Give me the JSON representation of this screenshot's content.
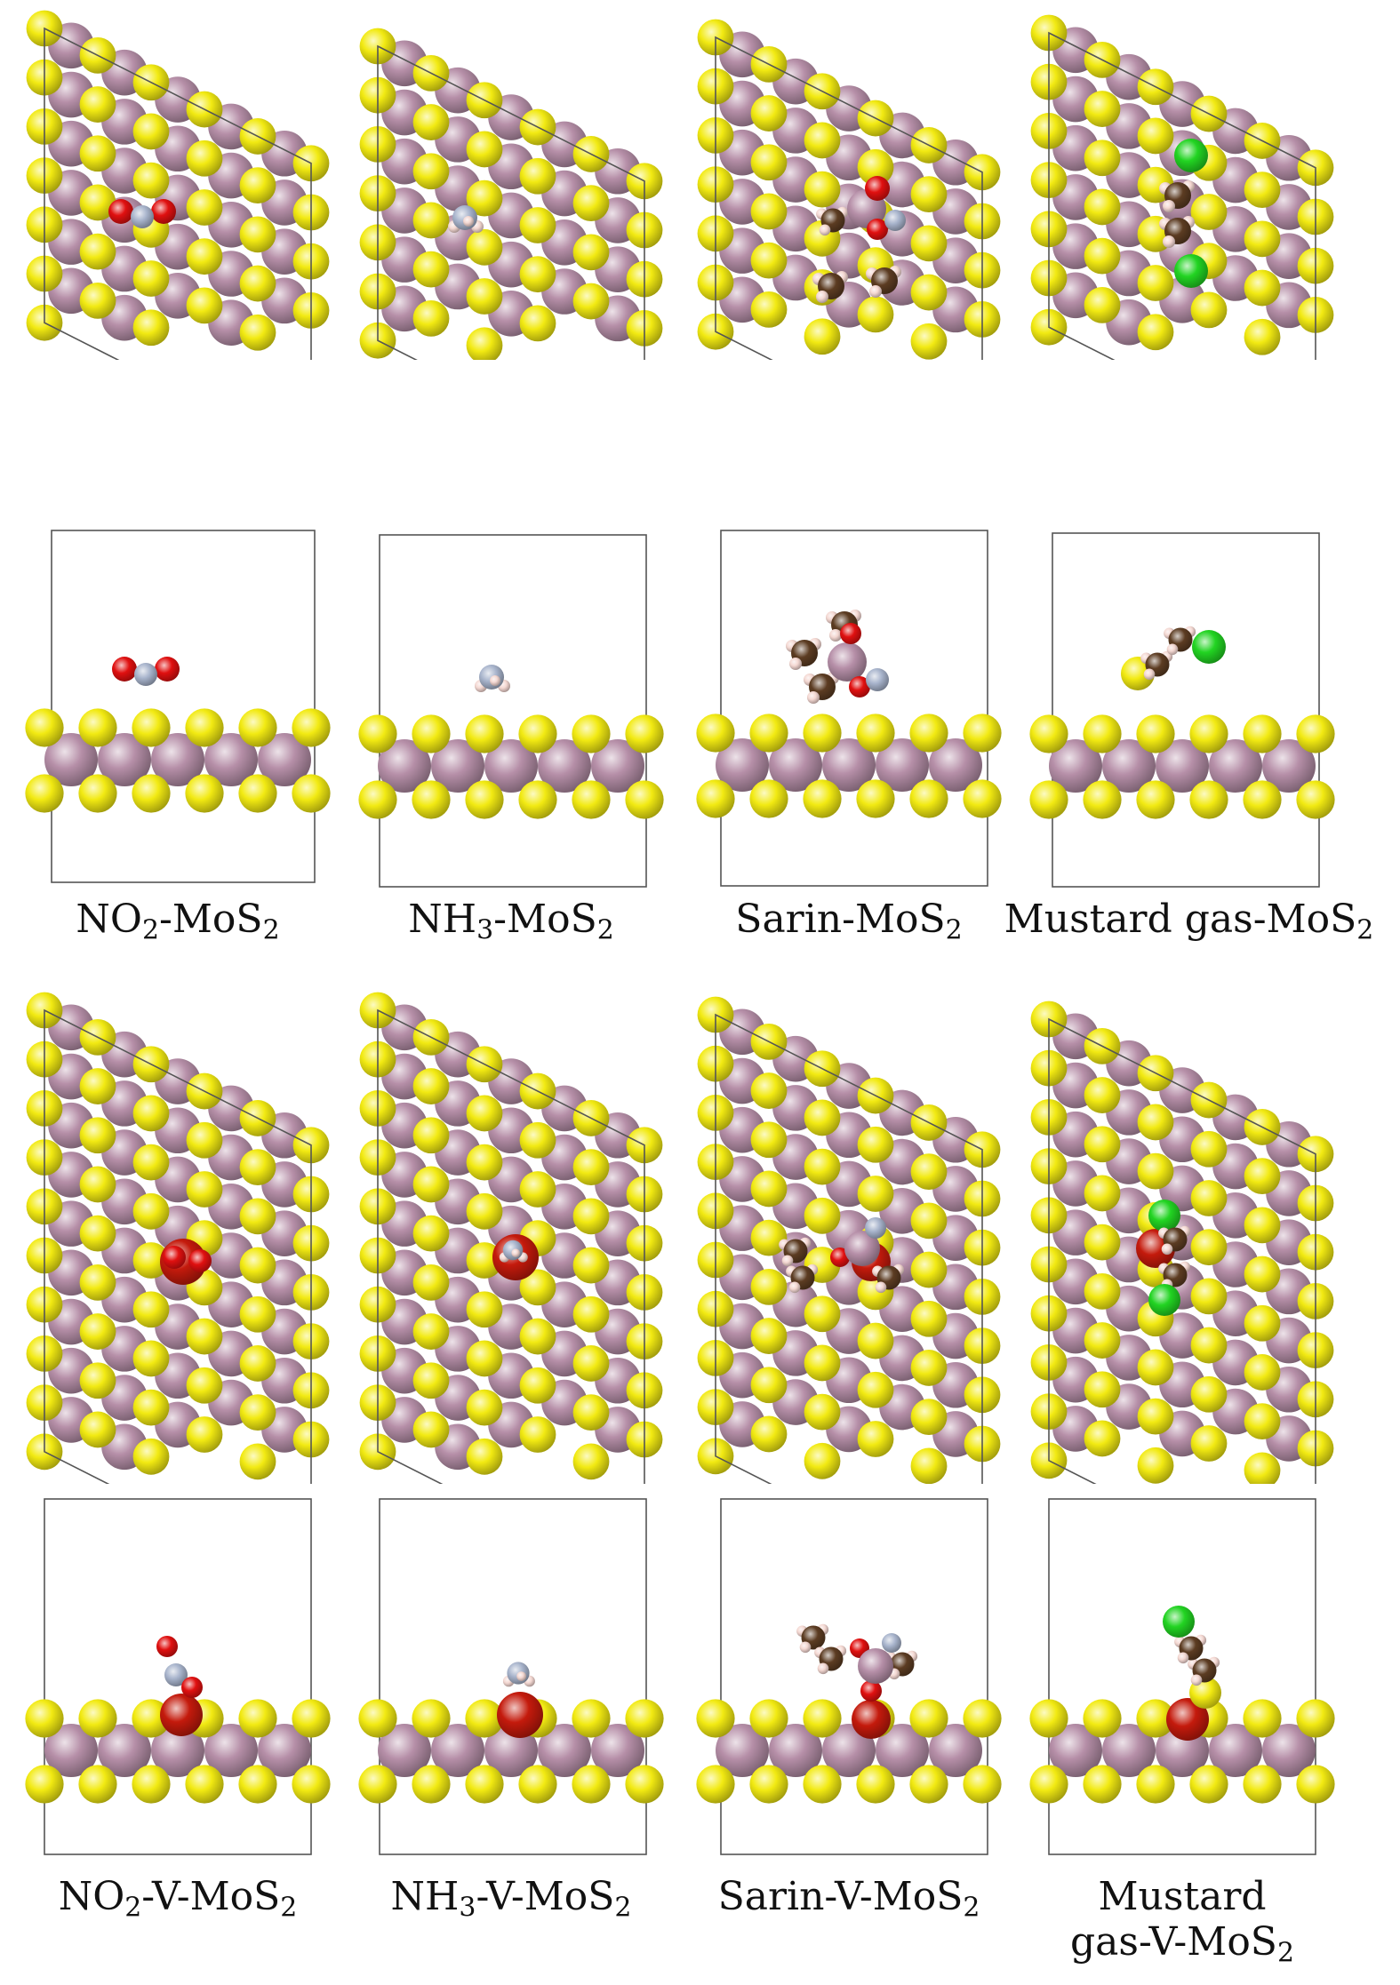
{
  "figure": {
    "colors": {
      "sulfur": "#f2ea12",
      "molybdenum": "#b68fa8",
      "oxygen": "#e01010",
      "nitrogen": "#a8b4cc",
      "carbon": "#5c3c22",
      "hydrogen": "#f4d8d2",
      "chlorine": "#22d422",
      "vacancy": "#c41a0c",
      "cell_line": "#555555"
    },
    "top_row_captions": [
      {
        "pre": "NO",
        "sub": "2",
        "mid": "-MoS",
        "sub2": "2",
        "post": ""
      },
      {
        "pre": "NH",
        "sub": "3",
        "mid": "-MoS",
        "sub2": "2",
        "post": ""
      },
      {
        "pre": "",
        "sub": "",
        "mid": "Sarin-MoS",
        "sub2": "2",
        "post": ""
      },
      {
        "pre": "",
        "sub": "",
        "mid": "Mustard gas-MoS",
        "sub2": "2",
        "post": ""
      }
    ],
    "bottom_row_captions": [
      {
        "pre": "NO",
        "sub": "2",
        "mid": "-V-MoS",
        "sub2": "2",
        "post": ""
      },
      {
        "pre": "NH",
        "sub": "3",
        "mid": "-V-MoS",
        "sub2": "2",
        "post": ""
      },
      {
        "pre": "",
        "sub": "",
        "mid": "Sarin-V-MoS",
        "sub2": "2",
        "post": ""
      },
      {
        "pre": "Mustard",
        "sub": "",
        "mid": "gas-V-MoS",
        "sub2": "2",
        "post": ""
      }
    ]
  }
}
